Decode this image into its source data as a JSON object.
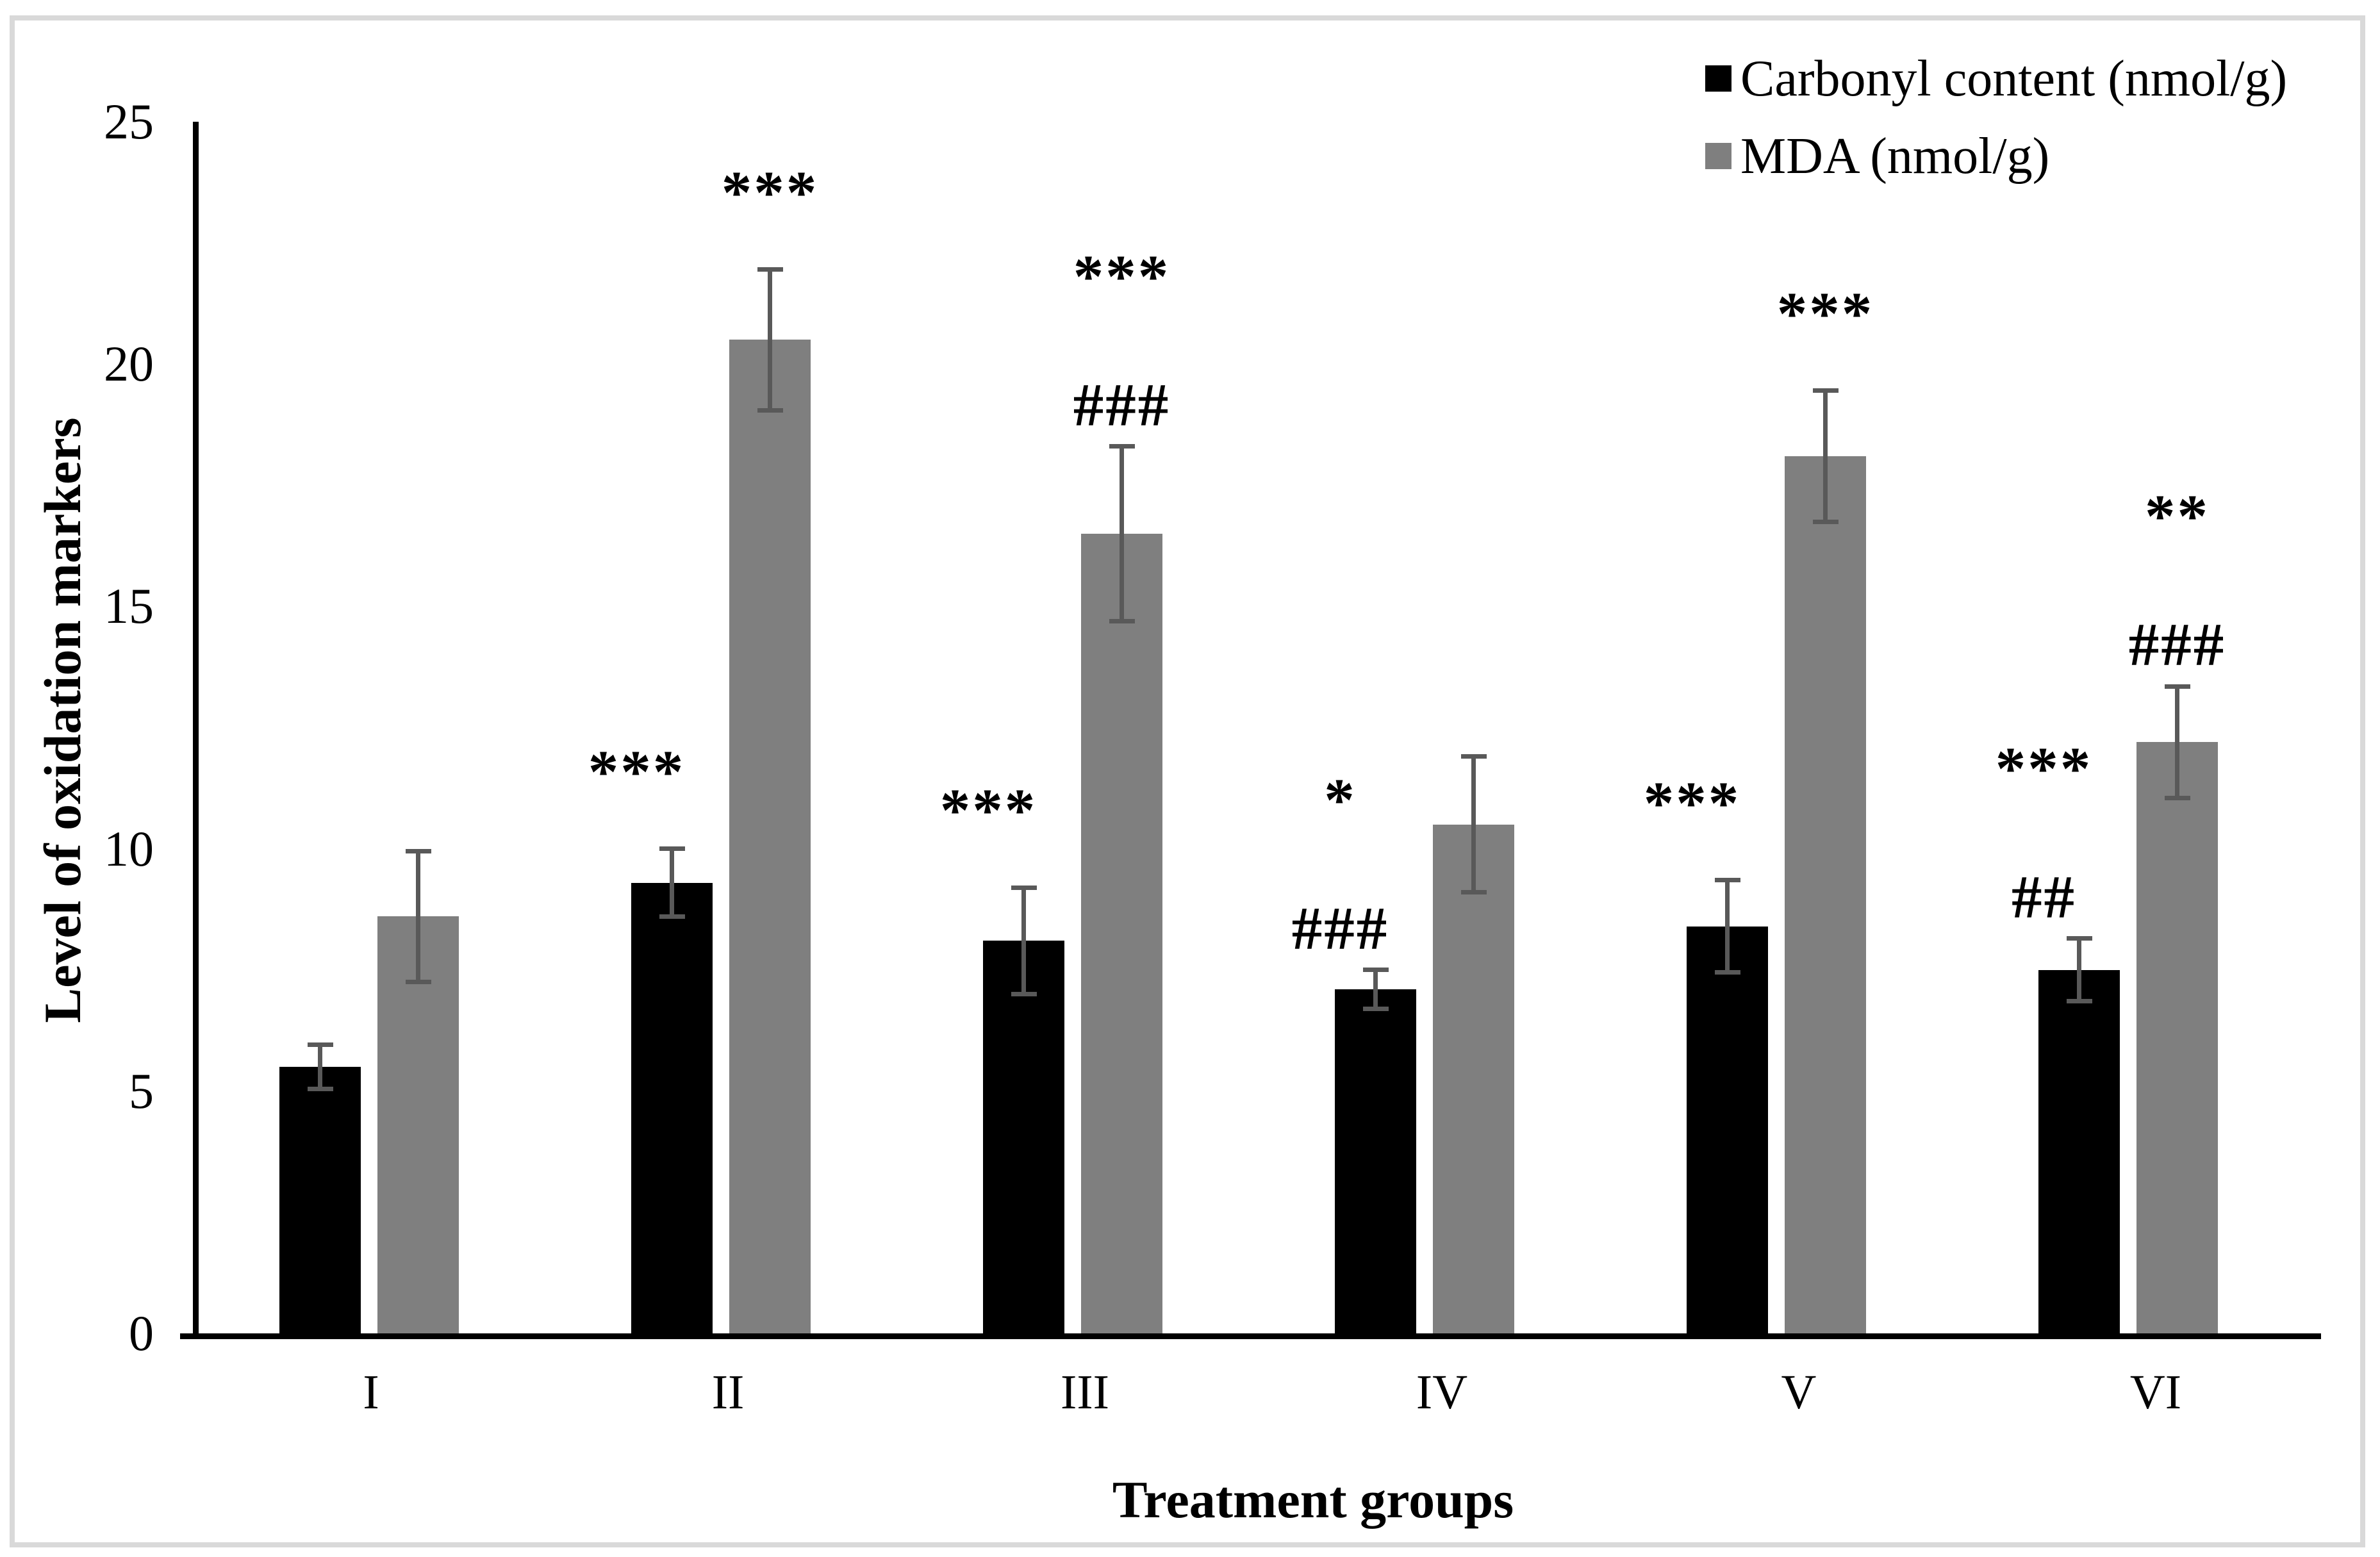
{
  "figure": {
    "background": "#ffffff",
    "border_color": "#d9d9d9"
  },
  "chart_data": {
    "type": "bar",
    "title": "",
    "xlabel": "Treatment groups",
    "ylabel": "Level of oxidation markers",
    "categories": [
      "I",
      "II",
      "III",
      "IV",
      "V",
      "VI"
    ],
    "y_ticks": [
      0,
      5,
      10,
      15,
      20,
      25
    ],
    "ylim": [
      0,
      25
    ],
    "grid": false,
    "legend_position": "top-right",
    "error_bar_color": "#595959",
    "series": [
      {
        "name": "Carbonyl content (nmol/g)",
        "color": "#000000",
        "values": [
          5.5,
          9.3,
          8.1,
          7.1,
          8.4,
          7.5
        ],
        "errors": [
          0.45,
          0.7,
          1.1,
          0.4,
          0.95,
          0.65
        ],
        "significance": [
          [],
          [
            "***"
          ],
          [
            "***"
          ],
          [
            "*",
            "###"
          ],
          [
            "***"
          ],
          [
            "***",
            "##"
          ]
        ]
      },
      {
        "name": "MDA (nmol/g)",
        "color": "#7f7f7f",
        "values": [
          8.6,
          20.5,
          16.5,
          10.5,
          18.1,
          12.2
        ],
        "errors": [
          1.35,
          1.45,
          1.8,
          1.4,
          1.35,
          1.15
        ],
        "significance": [
          [],
          [
            "***"
          ],
          [
            "***",
            "###"
          ],
          [],
          [
            "***"
          ],
          [
            "**",
            "###"
          ]
        ]
      }
    ]
  }
}
